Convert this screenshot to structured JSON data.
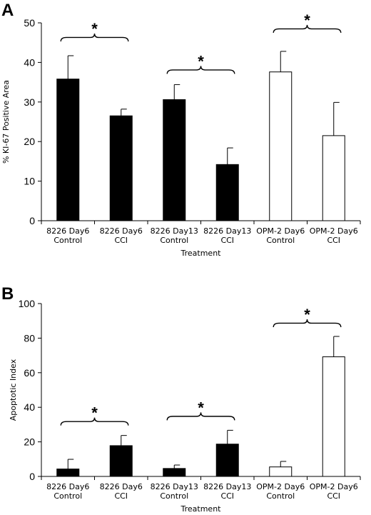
{
  "chart_data": [
    {
      "panel": "A",
      "type": "bar",
      "ylabel": "% KI-67 Positive Area",
      "xlabel": "Treatment",
      "ylim": [
        0,
        50
      ],
      "yticks": [
        0,
        10,
        20,
        30,
        40,
        50
      ],
      "categories": [
        [
          "8226 Day6",
          "Control"
        ],
        [
          "8226 Day6",
          "CCI"
        ],
        [
          "8226 Day13",
          "Control"
        ],
        [
          "8226 Day13",
          "CCI"
        ],
        [
          "OPM-2 Day6",
          "Control"
        ],
        [
          "OPM-2 Day6",
          "CCI"
        ]
      ],
      "values": [
        35.8,
        26.5,
        30.6,
        14.2,
        37.6,
        21.5
      ],
      "errors": [
        5.9,
        1.7,
        3.8,
        4.2,
        5.2,
        8.4
      ],
      "fills": [
        "#000000",
        "#000000",
        "#000000",
        "#000000",
        "#ffffff",
        "#ffffff"
      ],
      "significance": [
        {
          "pair": [
            0,
            1
          ],
          "label": "*"
        },
        {
          "pair": [
            2,
            3
          ],
          "label": "*"
        },
        {
          "pair": [
            4,
            5
          ],
          "label": "*"
        }
      ]
    },
    {
      "panel": "B",
      "type": "bar",
      "ylabel": "Apoptotic Index",
      "xlabel": "Treatment",
      "ylim": [
        0,
        100
      ],
      "yticks": [
        0,
        20,
        40,
        60,
        80,
        100
      ],
      "categories": [
        [
          "8226 Day6",
          "Control"
        ],
        [
          "8226 Day6",
          "CCI"
        ],
        [
          "8226 Day13",
          "Control"
        ],
        [
          "8226 Day13",
          "CCI"
        ],
        [
          "OPM-2 Day6",
          "Control"
        ],
        [
          "OPM-2 Day6",
          "CCI"
        ]
      ],
      "values": [
        4.3,
        17.8,
        4.6,
        18.7,
        5.5,
        69.2
      ],
      "errors": [
        5.6,
        5.9,
        2.0,
        8.0,
        3.2,
        11.8
      ],
      "fills": [
        "#000000",
        "#000000",
        "#000000",
        "#000000",
        "#ffffff",
        "#ffffff"
      ],
      "significance": [
        {
          "pair": [
            0,
            1
          ],
          "label": "*"
        },
        {
          "pair": [
            2,
            3
          ],
          "label": "*"
        },
        {
          "pair": [
            4,
            5
          ],
          "label": "*"
        }
      ]
    }
  ]
}
